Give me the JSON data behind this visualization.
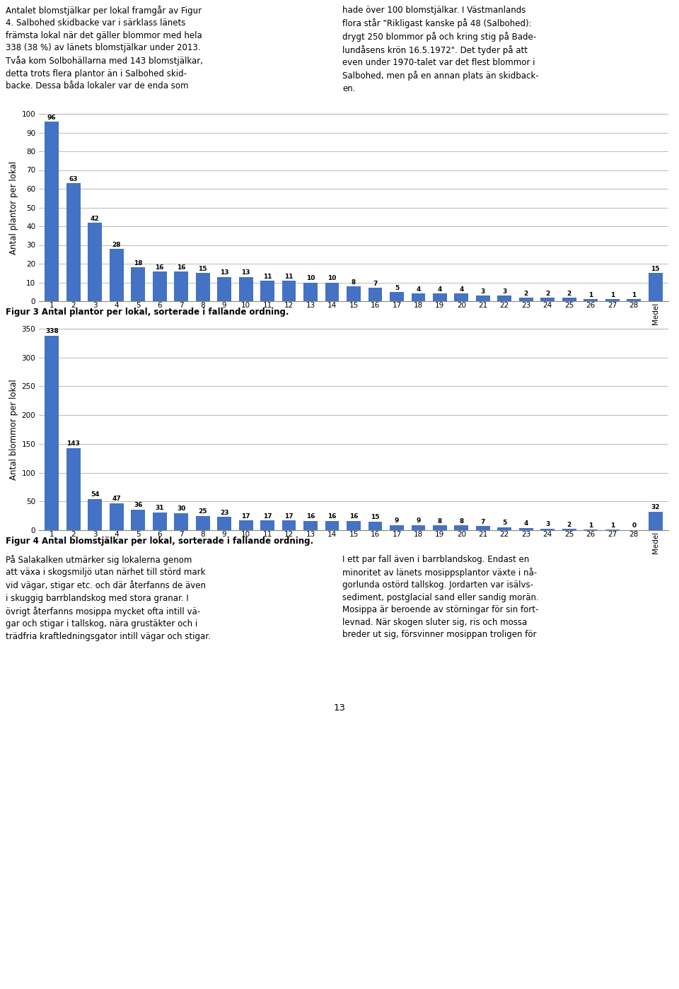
{
  "chart1": {
    "values": [
      96,
      63,
      42,
      28,
      18,
      16,
      16,
      15,
      13,
      13,
      11,
      11,
      10,
      10,
      8,
      7,
      5,
      4,
      4,
      4,
      3,
      3,
      2,
      2,
      2,
      1,
      1,
      1,
      15
    ],
    "labels": [
      "1",
      "2",
      "3",
      "4",
      "5",
      "6",
      "7",
      "8",
      "9",
      "10",
      "11",
      "12",
      "13",
      "14",
      "15",
      "16",
      "17",
      "18",
      "19",
      "20",
      "21",
      "22",
      "23",
      "24",
      "25",
      "26",
      "27",
      "28",
      "Medel"
    ],
    "ylabel": "Antal plantor per lokal",
    "caption": "Figur 3 Antal plantor per lokal, sorterade i fallande ordning.",
    "ylim": [
      0,
      100
    ],
    "yticks": [
      0,
      10,
      20,
      30,
      40,
      50,
      60,
      70,
      80,
      90,
      100
    ],
    "bar_color": "#4472C4"
  },
  "chart2": {
    "values": [
      338,
      143,
      54,
      47,
      36,
      31,
      30,
      25,
      23,
      17,
      17,
      17,
      16,
      16,
      16,
      15,
      9,
      9,
      8,
      8,
      7,
      5,
      4,
      3,
      2,
      1,
      1,
      0,
      32
    ],
    "labels": [
      "1",
      "2",
      "3",
      "4",
      "5",
      "6",
      "7",
      "8",
      "9",
      "10",
      "11",
      "12",
      "13",
      "14",
      "15",
      "16",
      "17",
      "18",
      "19",
      "20",
      "21",
      "22",
      "23",
      "24",
      "25",
      "26",
      "27",
      "28",
      "Medel"
    ],
    "ylabel": "Antal blommor per lokal",
    "caption": "Figur 4 Antal blomstjälkar per lokal, sorterade i fallande ordning.",
    "ylim": [
      0,
      350
    ],
    "yticks": [
      0,
      50,
      100,
      150,
      200,
      250,
      300,
      350
    ],
    "bar_color": "#4472C4"
  },
  "text_top_left": "Antalet blomstjälkar per lokal framgår av Figur\n4. Salbohed skidbacke var i särklass länets\nfrämsta lokal när det gäller blommor med hela\n338 (38 %) av länets blomstjälkar under 2013.\nTvåa kom Solbohällarna med 143 blomstjälkar,\ndetta trots flera plantor än i Salbohed skid-\nbacke. Dessa båda lokaler var de enda som",
  "text_top_right": "hade över 100 blomstjälkar. I Västmanlands\nflora står \"Rikligast kanske på 48 (Salbohed):\ndrygt 250 blommor på och kring stig på Bade-\nlundåsens krön 16.5.1972\". Det tyder på att\neven under 1970-talet var det flest blommor i\nSalbohed, men på en annan plats än skidback-\nen.",
  "text_bottom_left": "På Salakalken utmärker sig lokalerna genom\natt växa i skogsmiljö utan närhet till störd mark\nvid vägar, stigar etc. och där återfanns de även\ni skuggig barrblandskog med stora granar. I\növrigt återfanns mosippa mycket ofta intill vä-\ngar och stigar i tallskog, nära grustäkter och i\nträdfria kraftledningsgator intill vägar och stigar.",
  "text_bottom_right": "I ett par fall även i barrblandskog. Endast en\nminoritet av länets mosippsplantor växte i nå-\ngorlunda ostörd tallskog. Jordarten var isälvs-\nsediment, postglacial sand eller sandig morän.\nMosippa är beroende av störningar för sin fort-\nlevnad. När skogen sluter sig, ris och mossa\nbreder ut sig, försvinner mosippan troligen för",
  "page_number": "13",
  "background_color": "#ffffff",
  "bar_width": 0.65,
  "font_size_label": 8.5,
  "font_size_caption": 8.5,
  "font_size_bar": 6.5,
  "font_size_axis": 7.5,
  "font_size_text": 8.5
}
